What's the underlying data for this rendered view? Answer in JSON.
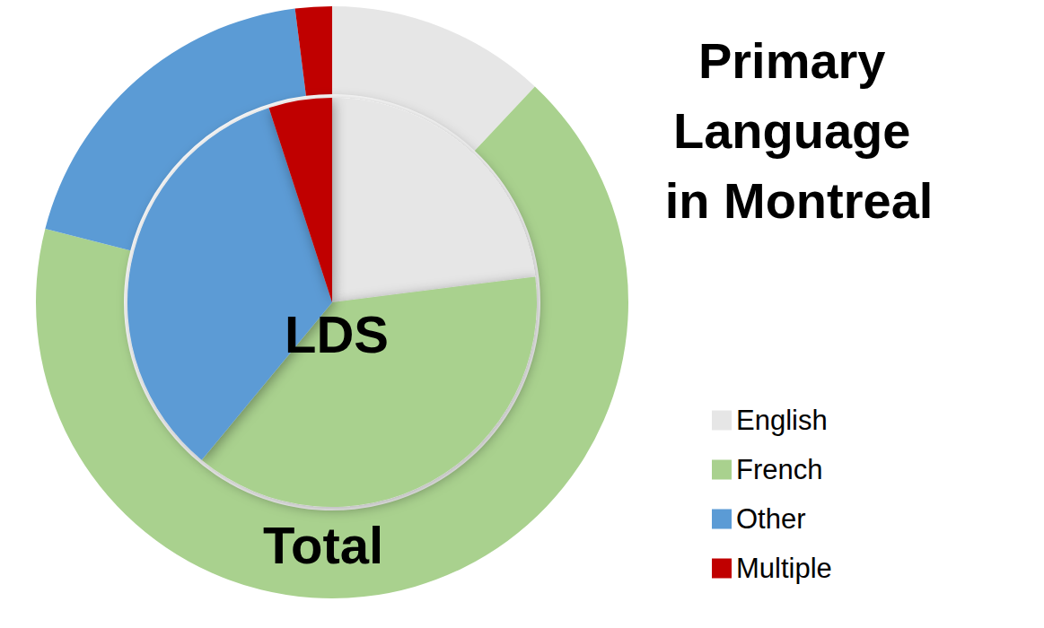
{
  "chart_data": {
    "type": "pie",
    "title": "Primary Language in Montreal",
    "categories": [
      "English",
      "French",
      "Other",
      "Multiple"
    ],
    "colors": [
      "#e6e6e6",
      "#a9d18e",
      "#5b9bd5",
      "#c00000"
    ],
    "series": [
      {
        "name": "LDS",
        "values": [
          23,
          38,
          34,
          5
        ]
      },
      {
        "name": "Total",
        "values": [
          12,
          67,
          19,
          2
        ]
      }
    ],
    "legend": "bottom-right",
    "data_labels": false
  }
}
